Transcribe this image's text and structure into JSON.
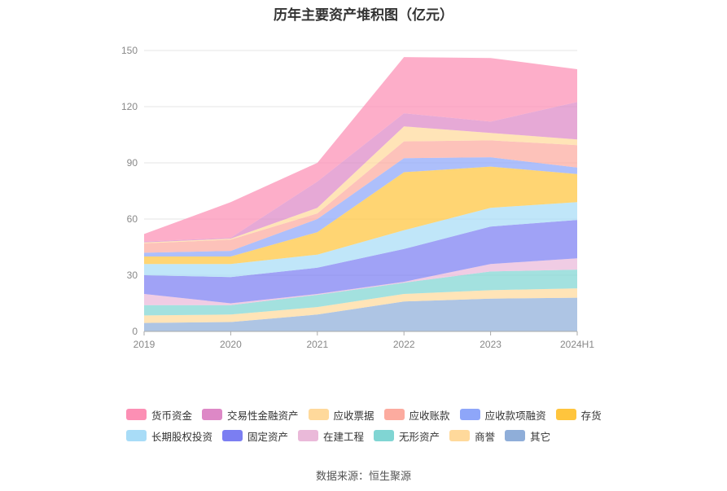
{
  "title": "历年主要资产堆积图（亿元）",
  "source": "数据来源：恒生聚源",
  "colors": {
    "货币资金": "#fc8fb4",
    "交易性金融资产": "#dd88c6",
    "应收票据": "#ffd99b",
    "应收账款": "#fcab9f",
    "应收款项融资": "#8ea6f9",
    "存货": "#ffc53d",
    "长期股权投资": "#a8dcf7",
    "固定资产": "#7b7ef2",
    "在建工程": "#eab9d9",
    "无形资产": "#80d5d3",
    "商誉": "#ffd99b",
    "其它": "#8faed9"
  },
  "legend_rows": [
    [
      "货币资金",
      "交易性金融资产",
      "应收票据",
      "应收账款",
      "应收款项融资",
      "存货"
    ],
    [
      "长期股权投资",
      "固定资产",
      "在建工程",
      "无形资产",
      "商誉",
      "其它"
    ]
  ],
  "chart_data": {
    "type": "area",
    "stacked": true,
    "title": "历年主要资产堆积图（亿元）",
    "categories": [
      "2019",
      "2020",
      "2021",
      "2022",
      "2023",
      "2024H1"
    ],
    "ylim": [
      0,
      150
    ],
    "yticks": [
      0,
      30,
      60,
      90,
      120,
      150
    ],
    "grid": true,
    "legend_position": "bottom",
    "series": [
      {
        "name": "其它",
        "values": [
          4.5,
          5,
          9,
          16,
          17.5,
          18
        ]
      },
      {
        "name": "商誉",
        "values": [
          4,
          4,
          4,
          4,
          4.5,
          5
        ]
      },
      {
        "name": "无形资产",
        "values": [
          5.5,
          5,
          6.5,
          6,
          10,
          10
        ]
      },
      {
        "name": "在建工程",
        "values": [
          6,
          1,
          0.5,
          0.5,
          4,
          6
        ]
      },
      {
        "name": "固定资产",
        "values": [
          10,
          14,
          14,
          17.5,
          20,
          20.5
        ]
      },
      {
        "name": "长期股权投资",
        "values": [
          6,
          7,
          7,
          10,
          10,
          9.5
        ]
      },
      {
        "name": "存货",
        "values": [
          4,
          4,
          12,
          31,
          22,
          15
        ]
      },
      {
        "name": "应收款项融资",
        "values": [
          2,
          3,
          7,
          7.5,
          5,
          3.5
        ]
      },
      {
        "name": "应收账款",
        "values": [
          5,
          6,
          3,
          9,
          9,
          12
        ]
      },
      {
        "name": "应收票据",
        "values": [
          0.5,
          0.5,
          3,
          8,
          4,
          3
        ]
      },
      {
        "name": "交易性金融资产",
        "values": [
          0.5,
          0.5,
          14,
          7,
          6,
          20
        ]
      },
      {
        "name": "货币资金",
        "values": [
          4,
          19,
          10,
          30,
          34,
          17.5
        ]
      }
    ]
  }
}
